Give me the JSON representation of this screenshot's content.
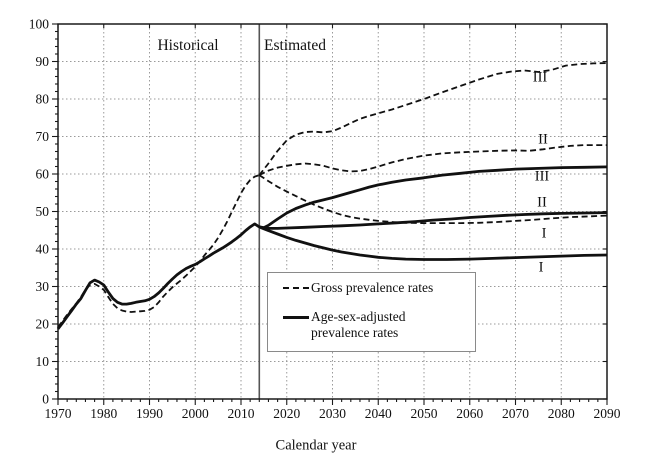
{
  "region_labels": {
    "historical": "Historical",
    "estimated": "Estimated"
  },
  "x_axis": {
    "label": "Calendar year",
    "ticks": [
      "1970",
      "1980",
      "1990",
      "2000",
      "2010",
      "2020",
      "2030",
      "2040",
      "2050",
      "2060",
      "2070",
      "2080",
      "2090"
    ]
  },
  "y_axis": {
    "ticks": [
      "0",
      "10",
      "20",
      "30",
      "40",
      "50",
      "60",
      "70",
      "80",
      "90",
      "100"
    ]
  },
  "legend": {
    "gross": "Gross prevalence rates",
    "adjusted_line1": "Age-sex-adjusted",
    "adjusted_line2": "prevalence rates"
  },
  "curve_labels": {
    "gross_iii": "III",
    "gross_ii": "II",
    "gross_i": "I",
    "adj_iii": "III",
    "adj_ii": "II",
    "adj_i": "I"
  },
  "colors": {
    "line": "#111111",
    "grid": "#9a9a9a",
    "divider": "#555555",
    "frame": "#1a1a1a"
  },
  "chart_data": {
    "type": "line",
    "title": "",
    "xlabel": "Calendar year",
    "ylabel": "",
    "xlim": [
      1970,
      2090
    ],
    "ylim": [
      0,
      100
    ],
    "x_major_step": 10,
    "y_major_step": 10,
    "grid": true,
    "divider_year": 2014,
    "series": [
      {
        "name": "gross-historical",
        "legend": "Gross prevalence rates",
        "style": "dashed",
        "points": [
          [
            1970,
            19.2
          ],
          [
            1971,
            20.8
          ],
          [
            1972,
            22.5
          ],
          [
            1973,
            24.0
          ],
          [
            1974,
            25.5
          ],
          [
            1975,
            27.2
          ],
          [
            1976,
            29.2
          ],
          [
            1977,
            30.4
          ],
          [
            1978,
            30.7
          ],
          [
            1979,
            30.0
          ],
          [
            1980,
            29.1
          ],
          [
            1981,
            27.2
          ],
          [
            1982,
            25.4
          ],
          [
            1983,
            24.2
          ],
          [
            1984,
            23.6
          ],
          [
            1985,
            23.3
          ],
          [
            1986,
            23.2
          ],
          [
            1987,
            23.3
          ],
          [
            1988,
            23.4
          ],
          [
            1989,
            23.5
          ],
          [
            1990,
            23.8
          ],
          [
            1991,
            24.5
          ],
          [
            1992,
            25.8
          ],
          [
            1993,
            27.3
          ],
          [
            1994,
            28.6
          ],
          [
            1995,
            29.8
          ],
          [
            1996,
            30.8
          ],
          [
            1997,
            31.8
          ],
          [
            1998,
            32.9
          ],
          [
            1999,
            34.1
          ],
          [
            2000,
            35.3
          ],
          [
            2001,
            36.7
          ],
          [
            2002,
            38.3
          ],
          [
            2003,
            39.7
          ],
          [
            2004,
            41.2
          ],
          [
            2005,
            43.0
          ],
          [
            2006,
            45.1
          ],
          [
            2007,
            47.4
          ],
          [
            2008,
            49.9
          ],
          [
            2009,
            52.4
          ],
          [
            2010,
            54.9
          ],
          [
            2011,
            56.9
          ],
          [
            2012,
            58.4
          ],
          [
            2013,
            59.3
          ],
          [
            2014,
            59.7
          ]
        ]
      },
      {
        "name": "adjusted-historical",
        "legend": "Age-sex-adjusted prevalence rates",
        "style": "solid",
        "points": [
          [
            1970,
            18.7
          ],
          [
            1971,
            20.3
          ],
          [
            1972,
            22.0
          ],
          [
            1973,
            23.6
          ],
          [
            1974,
            25.3
          ],
          [
            1975,
            26.8
          ],
          [
            1976,
            29.0
          ],
          [
            1977,
            31.0
          ],
          [
            1978,
            31.7
          ],
          [
            1979,
            31.2
          ],
          [
            1980,
            30.4
          ],
          [
            1981,
            28.5
          ],
          [
            1982,
            26.8
          ],
          [
            1983,
            25.8
          ],
          [
            1984,
            25.3
          ],
          [
            1985,
            25.3
          ],
          [
            1986,
            25.5
          ],
          [
            1987,
            25.8
          ],
          [
            1988,
            26.0
          ],
          [
            1989,
            26.2
          ],
          [
            1990,
            26.6
          ],
          [
            1991,
            27.3
          ],
          [
            1992,
            28.3
          ],
          [
            1993,
            29.5
          ],
          [
            1994,
            30.8
          ],
          [
            1995,
            32.0
          ],
          [
            1996,
            33.1
          ],
          [
            1997,
            34.0
          ],
          [
            1998,
            34.8
          ],
          [
            1999,
            35.4
          ],
          [
            2000,
            35.9
          ],
          [
            2001,
            36.6
          ],
          [
            2002,
            37.4
          ],
          [
            2003,
            38.1
          ],
          [
            2004,
            38.9
          ],
          [
            2005,
            39.6
          ],
          [
            2006,
            40.3
          ],
          [
            2007,
            41.1
          ],
          [
            2008,
            41.9
          ],
          [
            2009,
            42.8
          ],
          [
            2010,
            43.8
          ],
          [
            2011,
            44.9
          ],
          [
            2012,
            45.9
          ],
          [
            2013,
            46.7
          ],
          [
            2014,
            45.9
          ]
        ]
      },
      {
        "name": "gross-estimated-III",
        "scenario": "III",
        "style": "dashed",
        "points": [
          [
            2014,
            59.7
          ],
          [
            2016,
            62.8
          ],
          [
            2018,
            66.2
          ],
          [
            2020,
            69.0
          ],
          [
            2022,
            70.5
          ],
          [
            2024,
            71.2
          ],
          [
            2026,
            71.3
          ],
          [
            2028,
            71.1
          ],
          [
            2030,
            71.4
          ],
          [
            2032,
            72.4
          ],
          [
            2034,
            73.6
          ],
          [
            2036,
            74.7
          ],
          [
            2038,
            75.5
          ],
          [
            2040,
            76.2
          ],
          [
            2043,
            77.2
          ],
          [
            2046,
            78.4
          ],
          [
            2050,
            80.0
          ],
          [
            2054,
            81.8
          ],
          [
            2058,
            83.5
          ],
          [
            2062,
            85.2
          ],
          [
            2066,
            86.7
          ],
          [
            2069,
            87.3
          ],
          [
            2072,
            87.6
          ],
          [
            2075,
            87.2
          ],
          [
            2078,
            87.8
          ],
          [
            2081,
            88.9
          ],
          [
            2084,
            89.3
          ],
          [
            2087,
            89.5
          ],
          [
            2090,
            89.6
          ]
        ]
      },
      {
        "name": "gross-estimated-II",
        "scenario": "II",
        "style": "dashed",
        "points": [
          [
            2014,
            59.7
          ],
          [
            2016,
            60.9
          ],
          [
            2018,
            61.7
          ],
          [
            2020,
            62.2
          ],
          [
            2022,
            62.6
          ],
          [
            2024,
            62.8
          ],
          [
            2026,
            62.6
          ],
          [
            2028,
            62.2
          ],
          [
            2030,
            61.5
          ],
          [
            2032,
            61.0
          ],
          [
            2034,
            60.7
          ],
          [
            2036,
            60.8
          ],
          [
            2038,
            61.3
          ],
          [
            2040,
            62.0
          ],
          [
            2043,
            63.1
          ],
          [
            2046,
            64.0
          ],
          [
            2050,
            64.9
          ],
          [
            2054,
            65.5
          ],
          [
            2058,
            65.8
          ],
          [
            2062,
            66.0
          ],
          [
            2066,
            66.2
          ],
          [
            2070,
            66.3
          ],
          [
            2073,
            66.2
          ],
          [
            2076,
            66.6
          ],
          [
            2079,
            67.1
          ],
          [
            2082,
            67.5
          ],
          [
            2085,
            67.7
          ],
          [
            2090,
            67.7
          ]
        ]
      },
      {
        "name": "gross-estimated-I",
        "scenario": "I",
        "style": "dashed",
        "points": [
          [
            2014,
            59.7
          ],
          [
            2016,
            58.1
          ],
          [
            2018,
            56.6
          ],
          [
            2020,
            55.3
          ],
          [
            2022,
            54.1
          ],
          [
            2024,
            52.9
          ],
          [
            2026,
            51.8
          ],
          [
            2028,
            50.8
          ],
          [
            2030,
            49.9
          ],
          [
            2032,
            49.1
          ],
          [
            2034,
            48.5
          ],
          [
            2036,
            48.1
          ],
          [
            2038,
            47.8
          ],
          [
            2040,
            47.5
          ],
          [
            2043,
            47.2
          ],
          [
            2046,
            47.0
          ],
          [
            2050,
            46.9
          ],
          [
            2054,
            46.9
          ],
          [
            2058,
            46.9
          ],
          [
            2062,
            47.0
          ],
          [
            2066,
            47.2
          ],
          [
            2070,
            47.5
          ],
          [
            2074,
            47.8
          ],
          [
            2078,
            48.2
          ],
          [
            2082,
            48.5
          ],
          [
            2086,
            48.7
          ],
          [
            2090,
            48.9
          ]
        ]
      },
      {
        "name": "adjusted-estimated-III",
        "scenario": "III",
        "style": "solid",
        "points": [
          [
            2014,
            45.9
          ],
          [
            2015,
            45.7
          ],
          [
            2016,
            46.3
          ],
          [
            2018,
            48.0
          ],
          [
            2020,
            49.6
          ],
          [
            2022,
            50.8
          ],
          [
            2024,
            51.7
          ],
          [
            2026,
            52.5
          ],
          [
            2028,
            53.1
          ],
          [
            2030,
            53.7
          ],
          [
            2032,
            54.4
          ],
          [
            2034,
            55.1
          ],
          [
            2036,
            55.8
          ],
          [
            2038,
            56.5
          ],
          [
            2040,
            57.1
          ],
          [
            2043,
            57.8
          ],
          [
            2046,
            58.4
          ],
          [
            2050,
            59.0
          ],
          [
            2054,
            59.7
          ],
          [
            2058,
            60.2
          ],
          [
            2062,
            60.7
          ],
          [
            2066,
            61.0
          ],
          [
            2070,
            61.3
          ],
          [
            2075,
            61.5
          ],
          [
            2080,
            61.7
          ],
          [
            2085,
            61.8
          ],
          [
            2090,
            61.9
          ]
        ]
      },
      {
        "name": "adjusted-estimated-II",
        "scenario": "II",
        "style": "solid",
        "points": [
          [
            2014,
            45.9
          ],
          [
            2015,
            45.6
          ],
          [
            2016,
            45.5
          ],
          [
            2018,
            45.5
          ],
          [
            2020,
            45.6
          ],
          [
            2024,
            45.8
          ],
          [
            2028,
            46.0
          ],
          [
            2032,
            46.2
          ],
          [
            2036,
            46.4
          ],
          [
            2040,
            46.7
          ],
          [
            2044,
            47.0
          ],
          [
            2048,
            47.3
          ],
          [
            2052,
            47.7
          ],
          [
            2056,
            48.0
          ],
          [
            2060,
            48.4
          ],
          [
            2064,
            48.7
          ],
          [
            2068,
            49.0
          ],
          [
            2072,
            49.2
          ],
          [
            2076,
            49.4
          ],
          [
            2080,
            49.5
          ],
          [
            2085,
            49.6
          ],
          [
            2090,
            49.7
          ]
        ]
      },
      {
        "name": "adjusted-estimated-I",
        "scenario": "I",
        "style": "solid",
        "points": [
          [
            2014,
            45.9
          ],
          [
            2015,
            45.4
          ],
          [
            2016,
            44.9
          ],
          [
            2018,
            44.0
          ],
          [
            2020,
            43.1
          ],
          [
            2022,
            42.3
          ],
          [
            2024,
            41.6
          ],
          [
            2026,
            40.9
          ],
          [
            2028,
            40.3
          ],
          [
            2030,
            39.7
          ],
          [
            2032,
            39.2
          ],
          [
            2034,
            38.8
          ],
          [
            2036,
            38.4
          ],
          [
            2038,
            38.1
          ],
          [
            2040,
            37.8
          ],
          [
            2043,
            37.5
          ],
          [
            2046,
            37.3
          ],
          [
            2050,
            37.2
          ],
          [
            2055,
            37.2
          ],
          [
            2060,
            37.3
          ],
          [
            2065,
            37.5
          ],
          [
            2070,
            37.7
          ],
          [
            2075,
            37.9
          ],
          [
            2080,
            38.1
          ],
          [
            2085,
            38.3
          ],
          [
            2090,
            38.4
          ]
        ]
      }
    ]
  }
}
